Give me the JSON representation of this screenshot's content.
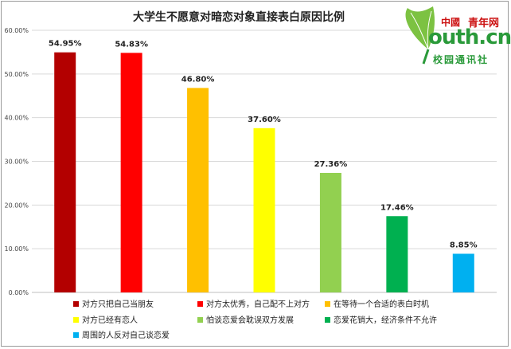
{
  "chart_data": {
    "type": "bar",
    "title": "大学生不愿意对暗恋对象直接表白原因比例",
    "categories": [
      "对方只把自己当朋友",
      "对方太优秀，自己配不上对方",
      "在等待一个合适的表白时机",
      "对方已经有恋人",
      "怕谈恋爱会耽误双方发展",
      "恋爱花销大，经济条件不允许",
      "周围的人反对自己谈恋爱"
    ],
    "values": [
      54.95,
      54.83,
      46.8,
      37.6,
      27.36,
      17.46,
      8.85
    ],
    "value_labels": [
      "54.95%",
      "54.83%",
      "46.80%",
      "37.60%",
      "27.36%",
      "17.46%",
      "8.85%"
    ],
    "colors": [
      "#b30000",
      "#ff0000",
      "#ffc000",
      "#ffff00",
      "#92d050",
      "#00b050",
      "#00b0f0"
    ],
    "y_ticks": [
      "0.00%",
      "10.00%",
      "20.00%",
      "30.00%",
      "40.00%",
      "50.00%",
      "60.00%"
    ],
    "ylim": [
      0,
      60
    ],
    "grid": true,
    "legend_position": "bottom"
  },
  "logo": {
    "cn_mark": "中國",
    "name": "青年网",
    "domain": "outh.cn",
    "subtitle": "校园通讯社",
    "colors": {
      "red": "#cc1111",
      "green": "#2a9a3a"
    }
  }
}
